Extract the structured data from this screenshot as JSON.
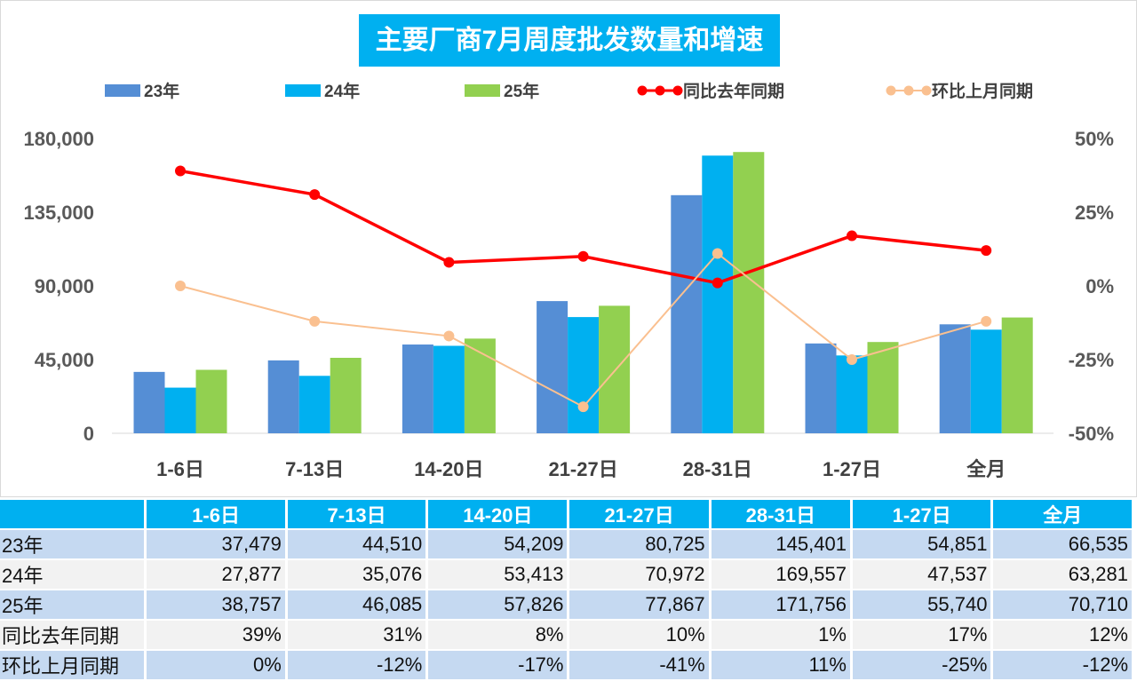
{
  "chart_data": {
    "type": "bar+line",
    "title": "主要厂商7月周度批发数量和增速",
    "categories": [
      "1-6日",
      "7-13日",
      "14-20日",
      "21-27日",
      "28-31日",
      "1-27日",
      "全月"
    ],
    "series": [
      {
        "name": "23年",
        "type": "bar",
        "axis": "left",
        "color": "#558ed5",
        "values": [
          37479,
          44510,
          54209,
          80725,
          145401,
          54851,
          66535
        ]
      },
      {
        "name": "24年",
        "type": "bar",
        "axis": "left",
        "color": "#00b0f0",
        "values": [
          27877,
          35076,
          53413,
          70972,
          169557,
          47537,
          63281
        ]
      },
      {
        "name": "25年",
        "type": "bar",
        "axis": "left",
        "color": "#92d050",
        "values": [
          38757,
          46085,
          57826,
          77867,
          171756,
          55740,
          70710
        ]
      },
      {
        "name": "同比去年同期",
        "type": "line",
        "axis": "right",
        "color": "#ff0000",
        "values": [
          39,
          31,
          8,
          10,
          1,
          17,
          12
        ]
      },
      {
        "name": "环比上月同期",
        "type": "line",
        "axis": "right",
        "color": "#fac090",
        "values": [
          0,
          -12,
          -17,
          -41,
          11,
          -25,
          -12
        ]
      }
    ],
    "y_left": {
      "range": [
        0,
        180000
      ],
      "ticks": [
        "0",
        "45,000",
        "90,000",
        "135,000",
        "180,000"
      ]
    },
    "y_right": {
      "range": [
        -50,
        50
      ],
      "ticks": [
        "-50%",
        "-25%",
        "0%",
        "25%",
        "50%"
      ]
    },
    "legend": "top",
    "grid": false
  },
  "table": {
    "header": [
      "",
      "1-6日",
      "7-13日",
      "14-20日",
      "21-27日",
      "28-31日",
      "1-27日",
      "全月"
    ],
    "rows": [
      [
        "23年",
        "37,479",
        "44,510",
        "54,209",
        "80,725",
        "145,401",
        "54,851",
        "66,535"
      ],
      [
        "24年",
        "27,877",
        "35,076",
        "53,413",
        "70,972",
        "169,557",
        "47,537",
        "63,281"
      ],
      [
        "25年",
        "38,757",
        "46,085",
        "57,826",
        "77,867",
        "171,756",
        "55,740",
        "70,710"
      ],
      [
        "同比去年同期",
        "39%",
        "31%",
        "8%",
        "10%",
        "1%",
        "17%",
        "12%"
      ],
      [
        "环比上月同期",
        "0%",
        "-12%",
        "-17%",
        "-41%",
        "11%",
        "-25%",
        "-12%"
      ]
    ]
  }
}
